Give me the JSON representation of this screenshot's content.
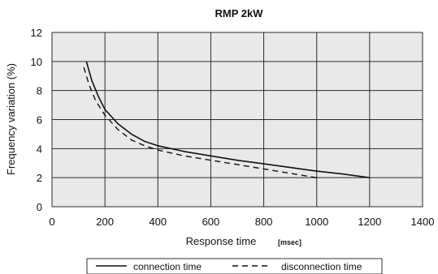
{
  "chart_data": {
    "type": "line",
    "title": "RMP 2kW",
    "xlabel": "Response time",
    "xunit": "[msec]",
    "ylabel": "Frequency variation (%)",
    "xlim": [
      0,
      1400
    ],
    "ylim": [
      0,
      12
    ],
    "xticks": [
      0,
      200,
      400,
      600,
      800,
      1000,
      1200,
      1400
    ],
    "yticks": [
      0,
      2,
      4,
      6,
      8,
      10,
      12
    ],
    "grid": true,
    "legend_position": "bottom",
    "series": [
      {
        "name": "connection time",
        "style": "solid",
        "color": "#111111",
        "x": [
          130,
          150,
          175,
          200,
          250,
          300,
          350,
          400,
          500,
          600,
          700,
          800,
          900,
          1000,
          1100,
          1200
        ],
        "y": [
          10.0,
          8.7,
          7.6,
          6.7,
          5.7,
          5.0,
          4.5,
          4.2,
          3.8,
          3.5,
          3.2,
          2.95,
          2.7,
          2.45,
          2.25,
          2.0
        ]
      },
      {
        "name": "disconnection time",
        "style": "dashed",
        "color": "#111111",
        "x": [
          120,
          140,
          165,
          200,
          250,
          300,
          350,
          400,
          500,
          600,
          700,
          800,
          900,
          1000
        ],
        "y": [
          9.6,
          8.4,
          7.3,
          6.3,
          5.3,
          4.6,
          4.2,
          3.9,
          3.5,
          3.2,
          2.9,
          2.6,
          2.3,
          2.0
        ]
      }
    ]
  }
}
